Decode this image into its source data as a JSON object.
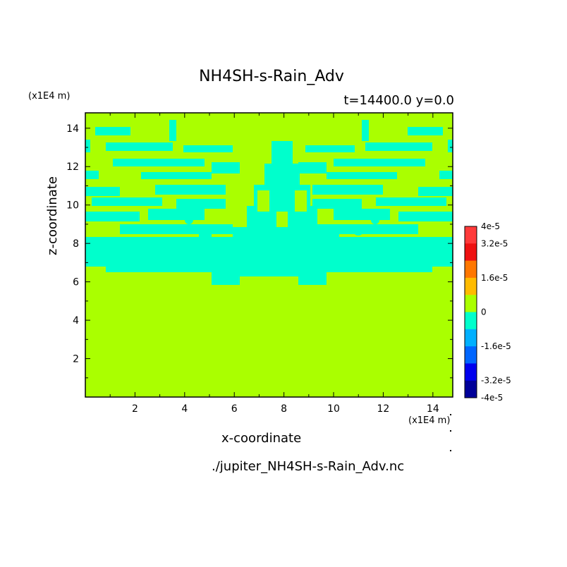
{
  "chart_data": {
    "type": "heatmap",
    "title": "NH4SH-s-Rain_Adv",
    "subtitle": "t=14400.0 y=0.0",
    "xlabel": "x-coordinate",
    "ylabel": "z-coordinate",
    "x_unit": "(x1E4 m)",
    "y_unit": "(x1E4 m)",
    "source_file": "./jupiter_NH4SH-s-Rain_Adv.nc",
    "xlim": [
      0,
      14.8
    ],
    "ylim": [
      0,
      14.8
    ],
    "x_ticks": [
      "2",
      "4",
      "6",
      "8",
      "10",
      "12",
      "14"
    ],
    "y_ticks": [
      "2",
      "4",
      "6",
      "8",
      "10",
      "12",
      "14"
    ],
    "background_value": 0,
    "negative_value": -8e-06,
    "colorbar": {
      "labels": [
        "4e-5",
        "3.2e-5",
        "1.6e-5",
        "0",
        "-1.6e-5",
        "-3.2e-5",
        "-4e-5"
      ],
      "colors_top_to_bottom": [
        "#ff3a3a",
        "#ee1111",
        "#ff7700",
        "#ffbb00",
        "#aaff00",
        "#00ffcc",
        "#00b0ff",
        "#0066ff",
        "#0000ee",
        "#000099"
      ]
    }
  },
  "colors": {
    "zero_field": "#aaff00",
    "negative_field": "#00ffcc",
    "frame": "#000000"
  }
}
